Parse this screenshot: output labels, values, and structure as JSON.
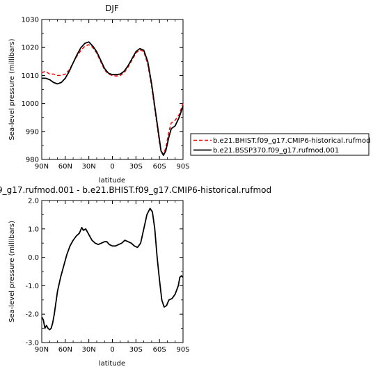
{
  "chart_data": [
    {
      "type": "line",
      "title": "DJF",
      "xlabel": "latitude",
      "ylabel": "Sea-level pressure (millibars)",
      "ylim": [
        980,
        1030
      ],
      "xlim": [
        -90,
        90
      ],
      "x_ticks": [
        -90,
        -60,
        -30,
        0,
        30,
        60,
        90
      ],
      "x_tick_labels": [
        "90N",
        "60N",
        "30N",
        "0",
        "30S",
        "60S",
        "90S"
      ],
      "y_ticks": [
        980,
        990,
        1000,
        1010,
        1020,
        1030
      ],
      "y_tick_labels": [
        "980",
        "990",
        "1000",
        "1010",
        "1020",
        "1030"
      ],
      "legend_position": "right",
      "series": [
        {
          "name": "b.e21.BHIST.f09_g17.CMIP6-historical.rufmod",
          "color": "#ff0000",
          "style": "dashed",
          "points": [
            [
              -90,
              1011
            ],
            [
              -85,
              1011.5
            ],
            [
              -80,
              1010.5
            ],
            [
              -75,
              1010.5
            ],
            [
              -70,
              1010
            ],
            [
              -65,
              1010
            ],
            [
              -60,
              1010.5
            ],
            [
              -55,
              1012
            ],
            [
              -50,
              1014.5
            ],
            [
              -45,
              1017
            ],
            [
              -40,
              1019
            ],
            [
              -35,
              1020.5
            ],
            [
              -30,
              1021
            ],
            [
              -25,
              1020
            ],
            [
              -20,
              1018
            ],
            [
              -15,
              1015
            ],
            [
              -10,
              1012
            ],
            [
              -5,
              1010.5
            ],
            [
              0,
              1010
            ],
            [
              5,
              1009.8
            ],
            [
              10,
              1010
            ],
            [
              15,
              1011
            ],
            [
              20,
              1013
            ],
            [
              25,
              1015.5
            ],
            [
              30,
              1018
            ],
            [
              35,
              1019.2
            ],
            [
              40,
              1018.5
            ],
            [
              45,
              1014
            ],
            [
              50,
              1006
            ],
            [
              55,
              996
            ],
            [
              60,
              986
            ],
            [
              62,
              983
            ],
            [
              65,
              982
            ],
            [
              68,
              984
            ],
            [
              72,
              990
            ],
            [
              75,
              993
            ],
            [
              80,
              994
            ],
            [
              85,
              996
            ],
            [
              90,
              1000
            ]
          ]
        },
        {
          "name": "b.e21.BSSP370.f09_g17.rufmod.001",
          "color": "#000000",
          "style": "solid",
          "points": [
            [
              -90,
              1009
            ],
            [
              -85,
              1009
            ],
            [
              -80,
              1008.5
            ],
            [
              -75,
              1007.5
            ],
            [
              -70,
              1007
            ],
            [
              -65,
              1007.5
            ],
            [
              -60,
              1009
            ],
            [
              -55,
              1011.5
            ],
            [
              -50,
              1014.5
            ],
            [
              -45,
              1017.5
            ],
            [
              -40,
              1020
            ],
            [
              -35,
              1021.5
            ],
            [
              -30,
              1022
            ],
            [
              -25,
              1020.5
            ],
            [
              -20,
              1018.5
            ],
            [
              -15,
              1015.5
            ],
            [
              -10,
              1012.5
            ],
            [
              -5,
              1010.8
            ],
            [
              0,
              1010.3
            ],
            [
              5,
              1010.3
            ],
            [
              10,
              1010.5
            ],
            [
              15,
              1011.5
            ],
            [
              20,
              1013.5
            ],
            [
              25,
              1016
            ],
            [
              30,
              1018.5
            ],
            [
              35,
              1019.6
            ],
            [
              40,
              1019
            ],
            [
              45,
              1015
            ],
            [
              50,
              1007
            ],
            [
              55,
              997
            ],
            [
              60,
              987
            ],
            [
              62,
              983
            ],
            [
              65,
              981.5
            ],
            [
              68,
              983
            ],
            [
              72,
              988
            ],
            [
              75,
              991
            ],
            [
              80,
              992
            ],
            [
              85,
              995
            ],
            [
              90,
              999
            ]
          ]
        }
      ]
    },
    {
      "type": "line",
      "title": "9_g17.rufmod.001 - b.e21.BHIST.f09_g17.CMIP6-historical.rufmod",
      "xlabel": "latitude",
      "ylabel": "Sea-level pressure (millibars)",
      "ylim": [
        -3.0,
        2.0
      ],
      "xlim": [
        -90,
        90
      ],
      "x_ticks": [
        -90,
        -60,
        -30,
        0,
        30,
        60,
        90
      ],
      "x_tick_labels": [
        "90N",
        "60N",
        "30N",
        "0",
        "30S",
        "60S",
        "90S"
      ],
      "y_ticks": [
        -3.0,
        -2.0,
        -1.0,
        0.0,
        1.0,
        2.0
      ],
      "y_tick_labels": [
        "-3.0",
        "-2.0",
        "-1.0",
        "0.0",
        "1.0",
        "2.0"
      ],
      "series": [
        {
          "color": "#000000",
          "style": "solid",
          "points": [
            [
              -90,
              -2.1
            ],
            [
              -88,
              -2.2
            ],
            [
              -86,
              -2.5
            ],
            [
              -84,
              -2.4
            ],
            [
              -82,
              -2.5
            ],
            [
              -80,
              -2.55
            ],
            [
              -78,
              -2.5
            ],
            [
              -76,
              -2.3
            ],
            [
              -74,
              -2.0
            ],
            [
              -72,
              -1.6
            ],
            [
              -70,
              -1.2
            ],
            [
              -66,
              -0.7
            ],
            [
              -62,
              -0.3
            ],
            [
              -58,
              0.1
            ],
            [
              -54,
              0.4
            ],
            [
              -50,
              0.6
            ],
            [
              -46,
              0.75
            ],
            [
              -42,
              0.85
            ],
            [
              -39,
              1.05
            ],
            [
              -37,
              0.95
            ],
            [
              -34,
              1.0
            ],
            [
              -30,
              0.8
            ],
            [
              -26,
              0.6
            ],
            [
              -22,
              0.5
            ],
            [
              -18,
              0.45
            ],
            [
              -14,
              0.5
            ],
            [
              -10,
              0.55
            ],
            [
              -7,
              0.55
            ],
            [
              -4,
              0.45
            ],
            [
              0,
              0.4
            ],
            [
              4,
              0.4
            ],
            [
              8,
              0.45
            ],
            [
              12,
              0.5
            ],
            [
              16,
              0.6
            ],
            [
              20,
              0.55
            ],
            [
              24,
              0.5
            ],
            [
              28,
              0.4
            ],
            [
              32,
              0.35
            ],
            [
              36,
              0.5
            ],
            [
              40,
              1.0
            ],
            [
              44,
              1.5
            ],
            [
              48,
              1.72
            ],
            [
              51,
              1.6
            ],
            [
              54,
              1.0
            ],
            [
              57,
              0.0
            ],
            [
              60,
              -0.8
            ],
            [
              63,
              -1.5
            ],
            [
              66,
              -1.75
            ],
            [
              69,
              -1.7
            ],
            [
              72,
              -1.5
            ],
            [
              76,
              -1.45
            ],
            [
              80,
              -1.3
            ],
            [
              84,
              -1.0
            ],
            [
              86,
              -0.7
            ],
            [
              88,
              -0.65
            ],
            [
              90,
              -0.7
            ]
          ]
        }
      ]
    }
  ]
}
